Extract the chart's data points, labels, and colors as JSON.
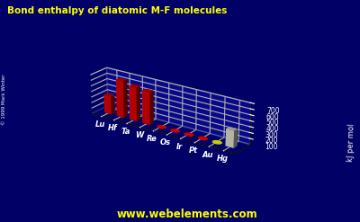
{
  "title": "Bond enthalpy of diatomic M-F molecules",
  "ylabel": "kJ per mol",
  "website": "www.webelements.com",
  "copyright": "© 1999 Mark Winter",
  "elements": [
    "Lu",
    "Hf",
    "Ta",
    "W",
    "Re",
    "Os",
    "Ir",
    "Pt",
    "Au",
    "Hg"
  ],
  "values": [
    320,
    650,
    600,
    575,
    0,
    0,
    0,
    0,
    0,
    290
  ],
  "bar_colors": [
    "#cc0000",
    "#cc0000",
    "#cc0000",
    "#cc0000",
    "#cc0000",
    "#cc0000",
    "#cc0000",
    "#cc0000",
    "#cccc00",
    "#ccccbb"
  ],
  "dot_colors": [
    "none",
    "none",
    "none",
    "none",
    "#cc0000",
    "#cc0000",
    "#cc0000",
    "#cc0000",
    "#cccc00",
    "none"
  ],
  "background_color": "#000066",
  "grid_color": "#7777aa",
  "floor_color": "#1111aa",
  "ylim": [
    0,
    700
  ],
  "yticks": [
    100,
    200,
    300,
    400,
    500,
    600,
    700
  ],
  "elev": 22,
  "azim": -55
}
